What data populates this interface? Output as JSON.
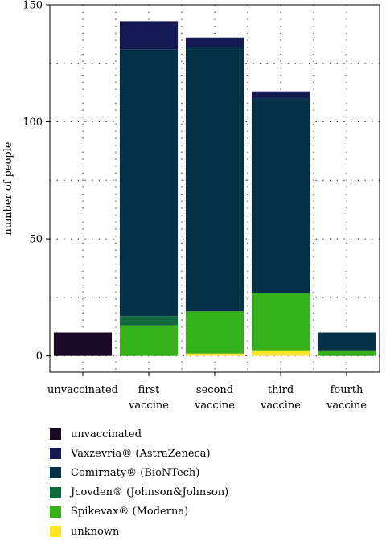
{
  "chart_data": {
    "type": "bar",
    "stacked": true,
    "categories": [
      "unvaccinated",
      "first vaccine",
      "second vaccine",
      "third vaccine",
      "fourth vaccine"
    ],
    "category_lines": [
      [
        "unvaccinated"
      ],
      [
        "first",
        "vaccine"
      ],
      [
        "second",
        "vaccine"
      ],
      [
        "third",
        "vaccine"
      ],
      [
        "fourth",
        "vaccine"
      ]
    ],
    "series": [
      {
        "name": "unknown",
        "color": "#fde725",
        "values": [
          0,
          0,
          1,
          2,
          0
        ]
      },
      {
        "name": "Spikevax® (Moderna)",
        "color": "#35b21a",
        "values": [
          0,
          13,
          18,
          25,
          2
        ]
      },
      {
        "name": "Jcovden® (Johnson&Johnson)",
        "color": "#0f6b3c",
        "values": [
          0,
          4,
          0,
          0,
          0
        ]
      },
      {
        "name": "Comirnaty® (BioNTech)",
        "color": "#063248",
        "values": [
          0,
          114,
          113,
          83,
          8
        ]
      },
      {
        "name": "Vaxzevria® (AstraZeneca)",
        "color": "#161a52",
        "values": [
          0,
          12,
          4,
          3,
          0
        ]
      },
      {
        "name": "unvaccinated",
        "color": "#1a0a24",
        "values": [
          10,
          0,
          0,
          0,
          0
        ]
      }
    ],
    "legend_order": [
      "unvaccinated",
      "Vaxzevria® (AstraZeneca)",
      "Comirnaty® (BioNTech)",
      "Jcovden® (Johnson&Johnson)",
      "Spikevax® (Moderna)",
      "unknown"
    ],
    "ylabel": "number of people",
    "xlabel": "",
    "ylim": [
      -7,
      150
    ],
    "yticks": [
      0,
      50,
      100,
      150
    ],
    "grid": true,
    "legend_position": "bottom"
  }
}
